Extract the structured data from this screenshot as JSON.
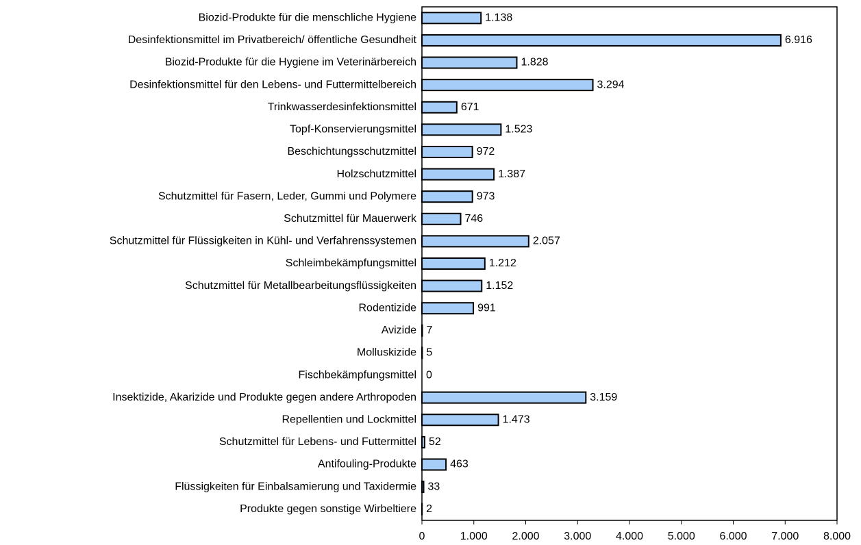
{
  "chart_data": {
    "type": "hbar",
    "categories": [
      "Biozid-Produkte für die menschliche Hygiene",
      "Desinfektionsmittel im Privatbereich/ öffentliche Gesundheit",
      "Biozid-Produkte für die Hygiene im Veterinärbereich",
      "Desinfektionsmittel für den Lebens- und Futtermittelbereich",
      "Trinkwasserdesinfektionsmittel",
      "Topf-Konservierungsmittel",
      "Beschichtungsschutzmittel",
      "Holzschutzmittel",
      "Schutzmittel für Fasern, Leder, Gummi und Polymere",
      "Schutzmittel für Mauerwerk",
      "Schutzmittel für Flüssigkeiten in Kühl- und Verfahrenssystemen",
      "Schleimbekämpfungsmittel",
      "Schutzmittel für Metallbearbeitungsflüssigkeiten",
      "Rodentizide",
      "Avizide",
      "Molluskizide",
      "Fischbekämpfungsmittel",
      "Insektizide, Akarizide und Produkte gegen andere Arthropoden",
      "Repellentien und Lockmittel",
      "Schutzmittel für Lebens- und Futtermittel",
      "Antifouling-Produkte",
      "Flüssigkeiten für Einbalsamierung und Taxidermie",
      "Produkte gegen sonstige Wirbeltiere"
    ],
    "values": [
      1138,
      6916,
      1828,
      3294,
      671,
      1523,
      972,
      1387,
      973,
      746,
      2057,
      1212,
      1152,
      991,
      7,
      5,
      0,
      3159,
      1473,
      52,
      463,
      33,
      2
    ],
    "value_labels": [
      "1.138",
      "6.916",
      "1.828",
      "3.294",
      "671",
      "1.523",
      "972",
      "1.387",
      "973",
      "746",
      "2.057",
      "1.212",
      "1.152",
      "991",
      "7",
      "5",
      "0",
      "3.159",
      "1.473",
      "52",
      "463",
      "33",
      "2"
    ],
    "color": "#a6cdf7",
    "xlim": [
      0,
      8000
    ],
    "xticks": [
      0,
      {
        "value": 1000,
        "label": "1.000"
      },
      {
        "value": 2000,
        "label": "2.000"
      },
      {
        "value": 3000,
        "label": "3.000"
      },
      {
        "value": 4000,
        "label": "4.000"
      },
      {
        "value": 5000,
        "label": "5.000"
      },
      {
        "value": 6000,
        "label": "6.000"
      },
      {
        "value": 7000,
        "label": "7.000"
      },
      {
        "value": 8000,
        "label": "8.000"
      }
    ],
    "grid": false
  }
}
